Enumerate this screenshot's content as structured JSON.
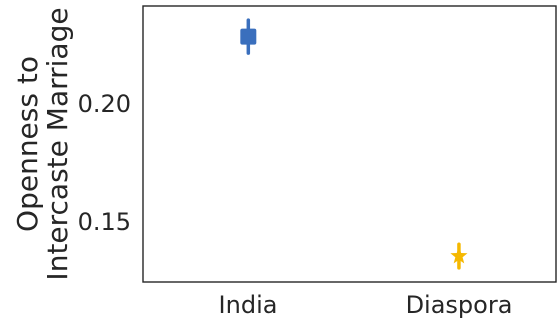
{
  "chart_data": {
    "type": "scatter",
    "title": "",
    "xlabel": "",
    "ylabel": [
      "Openness to",
      "Intercaste Marriage"
    ],
    "categories": [
      "India",
      "Diaspora"
    ],
    "y_ticks": [
      0.15,
      0.2
    ],
    "y_tick_labels": [
      "0.15",
      "0.20"
    ],
    "ylim": [
      0.125,
      0.242
    ],
    "grid": false,
    "legend": "none",
    "points": [
      {
        "category": "India",
        "value": 0.229,
        "ci_low": 0.222,
        "ci_high": 0.236,
        "marker": "square",
        "color": "#3a6fbd"
      },
      {
        "category": "Diaspora",
        "value": 0.136,
        "ci_low": 0.131,
        "ci_high": 0.141,
        "marker": "star",
        "color": "#f5b800"
      }
    ]
  }
}
